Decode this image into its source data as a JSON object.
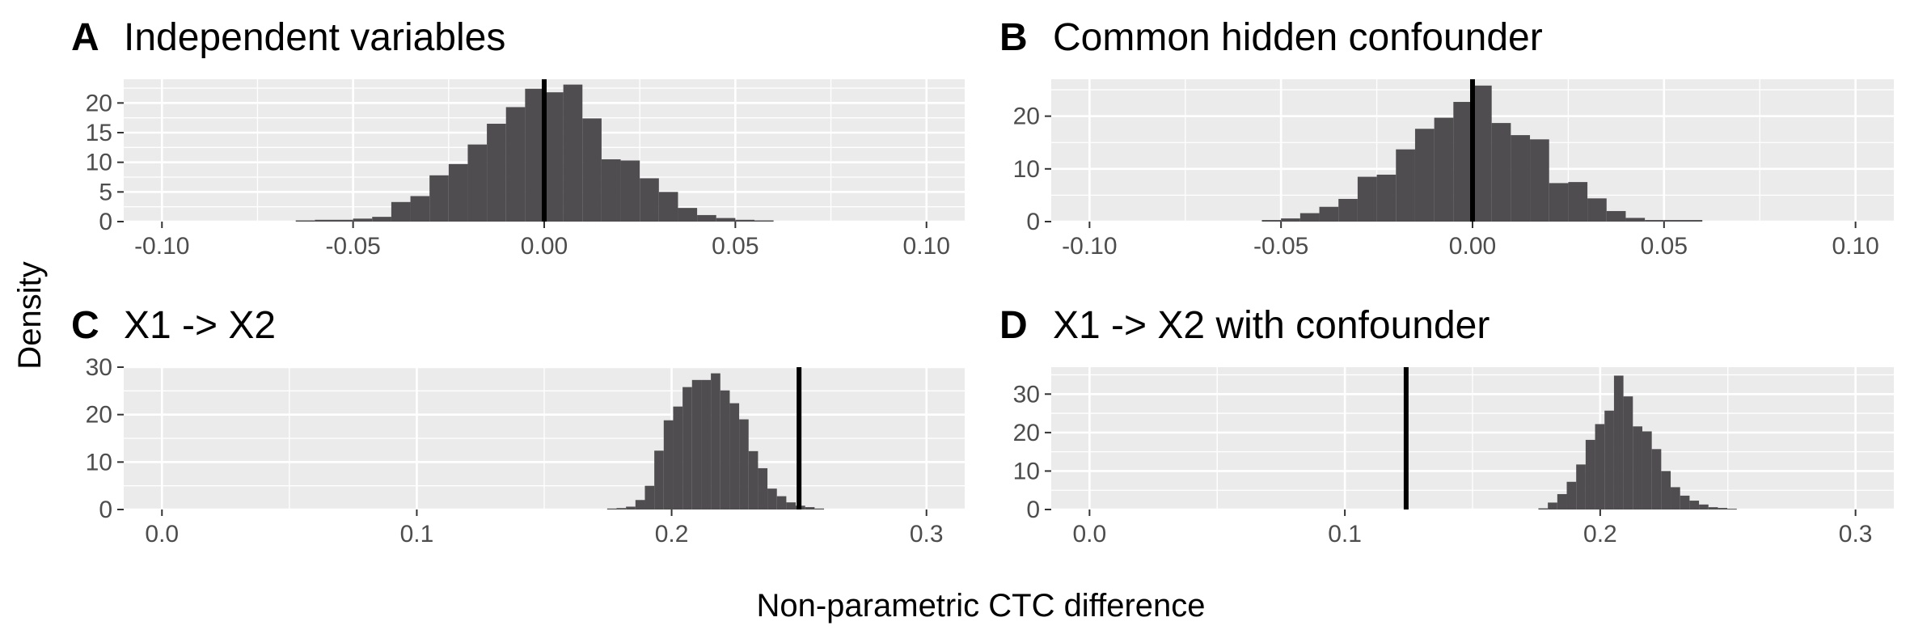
{
  "figure": {
    "ylabel": "Density",
    "xlabel": "Non-parametric CTC difference"
  },
  "colors": {
    "panel_bg": "#ebebeb",
    "grid_major": "#ffffff",
    "bar_fill": "#4f4d4f",
    "vline": "#000000",
    "tick_text": "#4d4d4d"
  },
  "chart_data": [
    {
      "type": "bar",
      "letter": "A",
      "title": "Independent variables",
      "xlim": [
        -0.11,
        0.11
      ],
      "ylim": [
        0,
        24
      ],
      "xticks": [
        -0.1,
        -0.05,
        0.0,
        0.05,
        0.1
      ],
      "xtick_labels": [
        "-0.10",
        "-0.05",
        "0.00",
        "0.05",
        "0.10"
      ],
      "yticks": [
        0,
        5,
        10,
        15,
        20
      ],
      "ytick_labels": [
        "0",
        "5",
        "10",
        "15",
        "20"
      ],
      "bin_width": 0.005,
      "bins_start": [
        -0.065,
        -0.06,
        -0.055,
        -0.05,
        -0.045,
        -0.04,
        -0.035,
        -0.03,
        -0.025,
        -0.02,
        -0.015,
        -0.01,
        -0.005,
        0.0,
        0.005,
        0.01,
        0.015,
        0.02,
        0.025,
        0.03,
        0.035,
        0.04,
        0.045,
        0.05,
        0.055
      ],
      "values": [
        0.2,
        0.3,
        0.3,
        0.5,
        0.8,
        3.3,
        4.3,
        7.8,
        9.7,
        13.0,
        16.5,
        19.3,
        22.4,
        21.8,
        23.1,
        17.4,
        10.5,
        10.3,
        7.3,
        5.0,
        2.3,
        1.1,
        0.6,
        0.3,
        0.2
      ],
      "vline": 0.0
    },
    {
      "type": "bar",
      "letter": "B",
      "title": "Common hidden confounder",
      "xlim": [
        -0.11,
        0.11
      ],
      "ylim": [
        0,
        27
      ],
      "xticks": [
        -0.1,
        -0.05,
        0.0,
        0.05,
        0.1
      ],
      "xtick_labels": [
        "-0.10",
        "-0.05",
        "0.00",
        "0.05",
        "0.10"
      ],
      "yticks": [
        0,
        10,
        20
      ],
      "ytick_labels": [
        "0",
        "10",
        "20"
      ],
      "bin_width": 0.005,
      "bins_start": [
        -0.055,
        -0.05,
        -0.045,
        -0.04,
        -0.035,
        -0.03,
        -0.025,
        -0.02,
        -0.015,
        -0.01,
        -0.005,
        0.0,
        0.005,
        0.01,
        0.015,
        0.02,
        0.025,
        0.03,
        0.035,
        0.04,
        0.045,
        0.05,
        0.055
      ],
      "values": [
        0.3,
        0.6,
        1.6,
        2.8,
        4.3,
        8.5,
        8.9,
        13.7,
        17.6,
        19.7,
        22.7,
        25.8,
        18.7,
        16.4,
        15.6,
        7.3,
        7.5,
        4.4,
        2.0,
        0.7,
        0.3,
        0.3,
        0.3
      ],
      "vline": 0.0
    },
    {
      "type": "bar",
      "letter": "C",
      "title": "X1 -> X2",
      "xlim": [
        -0.015,
        0.315
      ],
      "ylim": [
        0,
        30
      ],
      "xticks": [
        0.0,
        0.1,
        0.2,
        0.3
      ],
      "xtick_labels": [
        "0.0",
        "0.1",
        "0.2",
        "0.3"
      ],
      "yticks": [
        0,
        10,
        20,
        30
      ],
      "ytick_labels": [
        "0",
        "10",
        "20",
        "30"
      ],
      "bin_width": 0.0037,
      "bins_start": [
        0.1747,
        0.1784,
        0.1821,
        0.1858,
        0.1895,
        0.1932,
        0.1969,
        0.2006,
        0.2043,
        0.208,
        0.2117,
        0.2154,
        0.2191,
        0.2228,
        0.2265,
        0.2302,
        0.2339,
        0.2376,
        0.2413,
        0.245,
        0.2487,
        0.2524,
        0.2561
      ],
      "values": [
        0.2,
        0.3,
        0.6,
        2.0,
        5.0,
        12.4,
        18.8,
        21.7,
        25.8,
        27.3,
        27.3,
        28.7,
        25.1,
        22.4,
        19.0,
        12.3,
        8.7,
        4.4,
        2.8,
        1.5,
        0.8,
        0.5,
        0.2
      ],
      "vline": 0.25
    },
    {
      "type": "bar",
      "letter": "D",
      "title": "X1 -> X2 with confounder",
      "xlim": [
        -0.015,
        0.315
      ],
      "ylim": [
        0,
        37
      ],
      "xticks": [
        0.0,
        0.1,
        0.2,
        0.3
      ],
      "xtick_labels": [
        "0.0",
        "0.1",
        "0.2",
        "0.3"
      ],
      "yticks": [
        0,
        10,
        20,
        30
      ],
      "ytick_labels": [
        "0",
        "10",
        "20",
        "30"
      ],
      "bin_width": 0.0037,
      "bins_start": [
        0.1758,
        0.1795,
        0.1832,
        0.1869,
        0.1906,
        0.1943,
        0.198,
        0.2017,
        0.2054,
        0.2091,
        0.2128,
        0.2165,
        0.2202,
        0.2239,
        0.2276,
        0.2313,
        0.235,
        0.2387,
        0.2424,
        0.2461,
        0.2498
      ],
      "values": [
        0.3,
        1.8,
        4.0,
        7.2,
        11.7,
        18.1,
        22.2,
        25.7,
        34.8,
        29.4,
        21.6,
        20.3,
        15.7,
        10.0,
        5.8,
        3.6,
        2.3,
        1.3,
        0.6,
        0.4,
        0.2
      ],
      "vline": 0.124
    }
  ]
}
